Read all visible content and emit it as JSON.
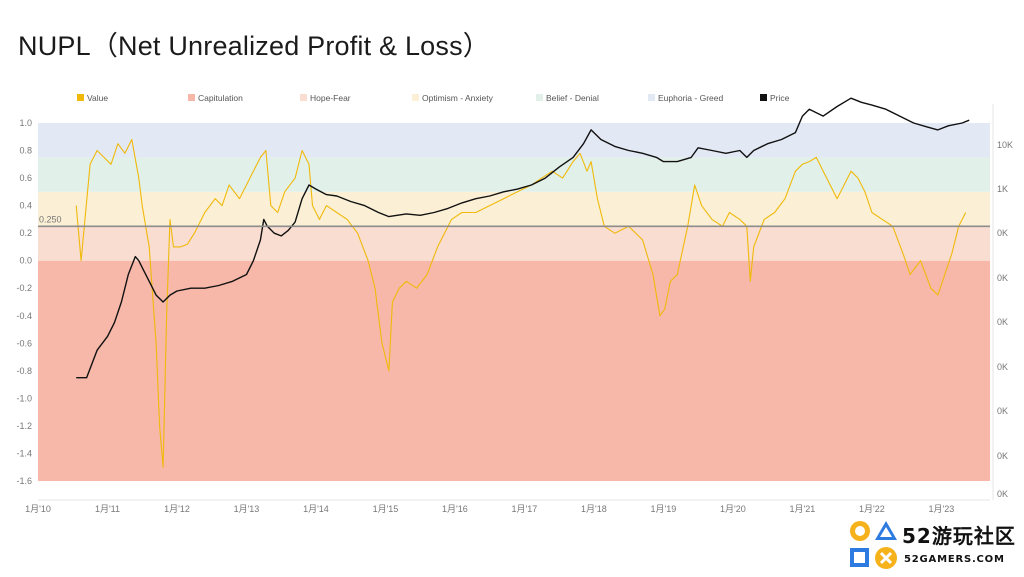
{
  "title": "NUPL（Net Unrealized Profit & Loss）",
  "colors": {
    "value": "#f0b90b",
    "capitulation": "#f7b8a9",
    "hope_fear": "#f9ddd0",
    "optimism_anxiety": "#fbf0d6",
    "belief_denial": "#e2f0ea",
    "euphoria_greed": "#e3e8f5",
    "price": "#111111",
    "reference_line": "#8c8c8c"
  },
  "brand": {
    "number": "52",
    "name": "游玩社区",
    "site": "52GAMERS.COM"
  },
  "chart_data": {
    "type": "line",
    "legend": [
      {
        "label": "Value",
        "color": "#f0b90b"
      },
      {
        "label": "Capitulation",
        "color": "#f7b8a9"
      },
      {
        "label": "Hope-Fear",
        "color": "#f9ddd0"
      },
      {
        "label": "Optimism - Anxiety",
        "color": "#fbf0d6"
      },
      {
        "label": "Belief - Denial",
        "color": "#e2f0ea"
      },
      {
        "label": "Euphoria - Greed",
        "color": "#e3e8f5"
      },
      {
        "label": "Price",
        "color": "#111111"
      }
    ],
    "legend_position": "top",
    "bands": [
      {
        "name": "Capitulation",
        "from": -1.6,
        "to": 0.0
      },
      {
        "name": "Hope-Fear",
        "from": 0.0,
        "to": 0.25
      },
      {
        "name": "Optimism - Anxiety",
        "from": 0.25,
        "to": 0.5
      },
      {
        "name": "Belief - Denial",
        "from": 0.5,
        "to": 0.75
      },
      {
        "name": "Euphoria - Greed",
        "from": 0.75,
        "to": 1.0
      }
    ],
    "reference_line": {
      "value": 0.25,
      "label": "0.250"
    },
    "x_tick_labels": [
      "1月'10",
      "1月'11",
      "1月'12",
      "1月'13",
      "1月'14",
      "1月'15",
      "1月'16",
      "1月'17",
      "1月'18",
      "1月'19",
      "1月'20",
      "1月'21",
      "1月'22",
      "1月'23"
    ],
    "x_range": [
      2010.0,
      2023.7
    ],
    "y_left_ticks": [
      "1.0",
      "0.8",
      "0.6",
      "0.4",
      "0.2",
      "0.0",
      "-0.2",
      "-0.4",
      "-0.6",
      "-0.8",
      "-1.0",
      "-1.2",
      "-1.4",
      "-1.6"
    ],
    "y_left_range": [
      -1.6,
      1.0
    ],
    "y_right_ticks": [
      "10K",
      "1K",
      "0K",
      "0K",
      "0K",
      "0K",
      "0K",
      "0K",
      "0K"
    ],
    "series": [
      {
        "name": "Value",
        "x": [
          2010.55,
          2010.62,
          2010.75,
          2010.85,
          2010.95,
          2011.05,
          2011.15,
          2011.25,
          2011.35,
          2011.45,
          2011.5,
          2011.6,
          2011.7,
          2011.75,
          2011.8,
          2011.85,
          2011.9,
          2011.95,
          2012.05,
          2012.15,
          2012.25,
          2012.4,
          2012.55,
          2012.65,
          2012.75,
          2012.9,
          2013.05,
          2013.2,
          2013.28,
          2013.35,
          2013.45,
          2013.55,
          2013.7,
          2013.8,
          2013.9,
          2013.95,
          2014.05,
          2014.15,
          2014.3,
          2014.45,
          2014.6,
          2014.75,
          2014.85,
          2014.95,
          2015.05,
          2015.1,
          2015.2,
          2015.3,
          2015.45,
          2015.6,
          2015.75,
          2015.85,
          2015.95,
          2016.1,
          2016.3,
          2016.5,
          2016.7,
          2016.9,
          2017.1,
          2017.25,
          2017.4,
          2017.55,
          2017.7,
          2017.8,
          2017.9,
          2017.96,
          2018.05,
          2018.15,
          2018.3,
          2018.5,
          2018.7,
          2018.85,
          2018.95,
          2019.02,
          2019.1,
          2019.2,
          2019.35,
          2019.45,
          2019.55,
          2019.7,
          2019.85,
          2019.95,
          2020.1,
          2020.2,
          2020.25,
          2020.3,
          2020.45,
          2020.6,
          2020.75,
          2020.9,
          2021.0,
          2021.1,
          2021.2,
          2021.3,
          2021.4,
          2021.5,
          2021.6,
          2021.7,
          2021.8,
          2021.9,
          2022.0,
          2022.15,
          2022.3,
          2022.45,
          2022.55,
          2022.7,
          2022.85,
          2022.95,
          2023.05,
          2023.15,
          2023.25,
          2023.35
        ],
        "y": [
          0.4,
          0.0,
          0.7,
          0.8,
          0.75,
          0.7,
          0.85,
          0.78,
          0.88,
          0.6,
          0.4,
          0.1,
          -0.6,
          -1.2,
          -1.5,
          -0.4,
          0.3,
          0.1,
          0.1,
          0.12,
          0.2,
          0.35,
          0.45,
          0.4,
          0.55,
          0.45,
          0.6,
          0.75,
          0.8,
          0.4,
          0.35,
          0.5,
          0.6,
          0.8,
          0.7,
          0.4,
          0.3,
          0.4,
          0.35,
          0.3,
          0.2,
          0.0,
          -0.2,
          -0.6,
          -0.8,
          -0.3,
          -0.2,
          -0.15,
          -0.2,
          -0.1,
          0.1,
          0.2,
          0.3,
          0.35,
          0.35,
          0.4,
          0.45,
          0.5,
          0.55,
          0.6,
          0.65,
          0.6,
          0.72,
          0.78,
          0.65,
          0.72,
          0.45,
          0.25,
          0.2,
          0.25,
          0.15,
          -0.1,
          -0.4,
          -0.35,
          -0.15,
          -0.1,
          0.25,
          0.55,
          0.4,
          0.3,
          0.25,
          0.35,
          0.3,
          0.25,
          -0.15,
          0.1,
          0.3,
          0.35,
          0.45,
          0.65,
          0.7,
          0.72,
          0.75,
          0.65,
          0.55,
          0.45,
          0.55,
          0.65,
          0.6,
          0.5,
          0.35,
          0.3,
          0.25,
          0.05,
          -0.1,
          0.0,
          -0.2,
          -0.25,
          -0.1,
          0.05,
          0.25,
          0.35
        ]
      },
      {
        "name": "Price",
        "x": [
          2010.55,
          2010.7,
          2010.85,
          2011.0,
          2011.1,
          2011.2,
          2011.3,
          2011.4,
          2011.45,
          2011.5,
          2011.6,
          2011.7,
          2011.8,
          2011.9,
          2012.0,
          2012.2,
          2012.4,
          2012.6,
          2012.8,
          2013.0,
          2013.1,
          2013.2,
          2013.25,
          2013.3,
          2013.4,
          2013.5,
          2013.6,
          2013.7,
          2013.8,
          2013.9,
          2014.0,
          2014.15,
          2014.3,
          2014.5,
          2014.7,
          2014.9,
          2015.05,
          2015.3,
          2015.5,
          2015.7,
          2015.9,
          2016.1,
          2016.3,
          2016.5,
          2016.7,
          2016.9,
          2017.1,
          2017.3,
          2017.5,
          2017.7,
          2017.85,
          2017.96,
          2018.1,
          2018.3,
          2018.5,
          2018.7,
          2018.9,
          2019.0,
          2019.2,
          2019.4,
          2019.5,
          2019.7,
          2019.9,
          2020.1,
          2020.2,
          2020.3,
          2020.5,
          2020.7,
          2020.9,
          2021.0,
          2021.1,
          2021.3,
          2021.5,
          2021.7,
          2021.85,
          2022.0,
          2022.2,
          2022.4,
          2022.6,
          2022.8,
          2022.95,
          2023.1,
          2023.3,
          2023.4
        ],
        "y": [
          -0.85,
          -0.85,
          -0.65,
          -0.55,
          -0.45,
          -0.3,
          -0.1,
          0.03,
          0.0,
          -0.05,
          -0.15,
          -0.25,
          -0.3,
          -0.25,
          -0.22,
          -0.2,
          -0.2,
          -0.18,
          -0.15,
          -0.1,
          0.0,
          0.15,
          0.3,
          0.25,
          0.2,
          0.18,
          0.22,
          0.28,
          0.45,
          0.55,
          0.52,
          0.48,
          0.47,
          0.43,
          0.4,
          0.35,
          0.32,
          0.34,
          0.33,
          0.35,
          0.38,
          0.42,
          0.45,
          0.47,
          0.5,
          0.52,
          0.55,
          0.6,
          0.68,
          0.75,
          0.85,
          0.95,
          0.88,
          0.83,
          0.8,
          0.78,
          0.75,
          0.72,
          0.72,
          0.75,
          0.82,
          0.8,
          0.78,
          0.8,
          0.75,
          0.8,
          0.85,
          0.88,
          0.93,
          1.05,
          1.1,
          1.05,
          1.12,
          1.18,
          1.15,
          1.13,
          1.1,
          1.05,
          1.0,
          0.97,
          0.95,
          0.98,
          1.0,
          1.02
        ]
      }
    ]
  }
}
